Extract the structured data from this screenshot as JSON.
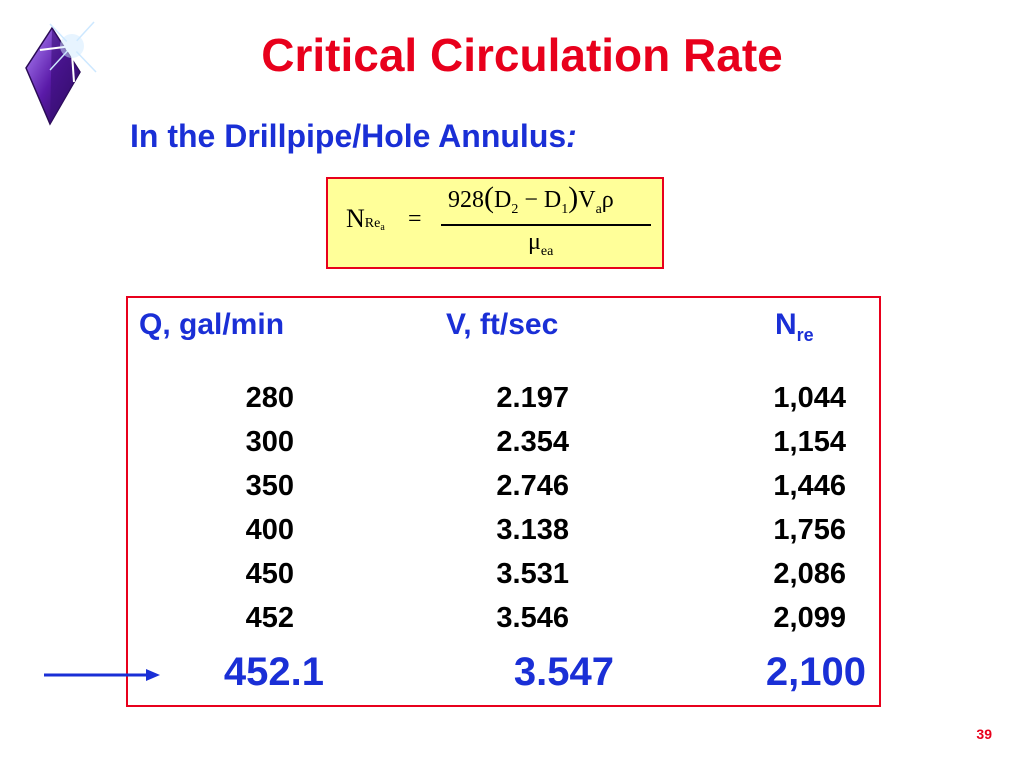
{
  "slide": {
    "title": "Critical Circulation Rate",
    "subtitle": "In the Drillpipe/Hole Annulus",
    "subtitle_colon": ":",
    "page_number": "39"
  },
  "formula": {
    "lhs_symbol": "N",
    "lhs_sub": "Re",
    "lhs_subsub": "a",
    "equals": "=",
    "numerator_coef": "928",
    "open_paren": "(",
    "d2": "D",
    "d2_sub": "2",
    "minus": "−",
    "d1": "D",
    "d1_sub": "1",
    "close_paren": ")",
    "v": "V",
    "v_sub": "a",
    "rho": "ρ",
    "den_symbol": "μ",
    "den_sub": "ea"
  },
  "table": {
    "headers": {
      "q": "Q,  gal/min",
      "v": "V,  ft/sec",
      "n": "N",
      "n_sub": "re"
    },
    "rows": [
      {
        "q": "280",
        "v": "2.197",
        "n": "1,044"
      },
      {
        "q": "300",
        "v": "2.354",
        "n": "1,154"
      },
      {
        "q": "350",
        "v": "2.746",
        "n": "1,446"
      },
      {
        "q": "400",
        "v": "3.138",
        "n": "1,756"
      },
      {
        "q": "450",
        "v": "3.531",
        "n": "2,086"
      },
      {
        "q": "452",
        "v": "3.546",
        "n": "2,099"
      }
    ],
    "final_row": {
      "q": "452.1",
      "v": "3.547",
      "n": "2,100"
    }
  },
  "colors": {
    "title": "#e8001c",
    "accent_blue": "#1a2fd6",
    "formula_bg": "#ffff99"
  }
}
